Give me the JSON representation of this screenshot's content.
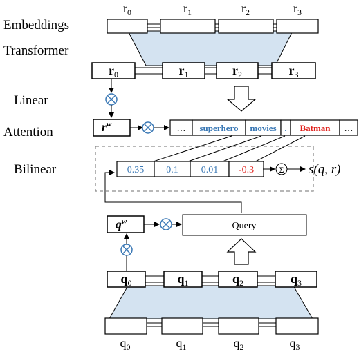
{
  "labels": {
    "embeddings": "Embeddings",
    "transformer": "Transformer",
    "linear": "Linear",
    "attention": "Attention",
    "bilinear": "Bilinear"
  },
  "top_inputs": [
    "r",
    "r",
    "r",
    "r"
  ],
  "top_input_subs": [
    "0",
    "1",
    "2",
    "3"
  ],
  "top_outputs": [
    "r",
    "r",
    "r",
    "r"
  ],
  "top_output_subs": [
    "0",
    "1",
    "2",
    "3"
  ],
  "rw": {
    "base": "r",
    "sup": "w"
  },
  "tokens": [
    {
      "text": "…",
      "color": "#000000"
    },
    {
      "text": "superhero",
      "color": "#3a78b5"
    },
    {
      "text": "movies",
      "color": "#3a78b5"
    },
    {
      "text": ".",
      "color": "#3a78b5"
    },
    {
      "text": "Batman",
      "color": "#e0201b"
    },
    {
      "text": "…",
      "color": "#000000"
    }
  ],
  "scores": [
    {
      "text": "0.35",
      "color": "#3a78b5"
    },
    {
      "text": "0.1",
      "color": "#3a78b5"
    },
    {
      "text": "0.01",
      "color": "#3a78b5"
    },
    {
      "text": "-0.3",
      "color": "#e0201b"
    }
  ],
  "sum_symbol": "Σ",
  "output": "s(q, r)",
  "qw": {
    "base": "q",
    "sup": "w"
  },
  "query_label": "Query",
  "bottom_outputs": [
    "q",
    "q",
    "q",
    "q"
  ],
  "bottom_output_subs": [
    "0",
    "1",
    "2",
    "3"
  ],
  "bottom_inputs": [
    "q",
    "q",
    "q",
    "q"
  ],
  "bottom_input_subs": [
    "0",
    "1",
    "2",
    "3"
  ],
  "colors": {
    "transformer_fill": "#d4e3f1",
    "dashed_border": "#8c8c8c"
  }
}
